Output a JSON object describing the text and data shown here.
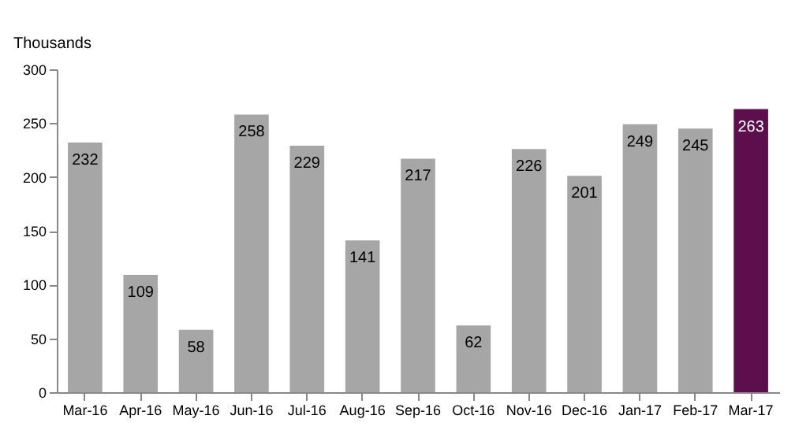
{
  "chart_data": {
    "type": "bar",
    "ylabel": "Thousands",
    "categories": [
      "Mar-16",
      "Apr-16",
      "May-16",
      "Jun-16",
      "Jul-16",
      "Aug-16",
      "Sep-16",
      "Oct-16",
      "Nov-16",
      "Dec-16",
      "Jan-17",
      "Feb-17",
      "Mar-17"
    ],
    "values": [
      232,
      109,
      58,
      258,
      229,
      141,
      217,
      62,
      226,
      201,
      249,
      245,
      263
    ],
    "colors": [
      "#a6a6a6",
      "#a6a6a6",
      "#a6a6a6",
      "#a6a6a6",
      "#a6a6a6",
      "#a6a6a6",
      "#a6a6a6",
      "#a6a6a6",
      "#a6a6a6",
      "#a6a6a6",
      "#a6a6a6",
      "#a6a6a6",
      "#5c0f4c"
    ],
    "ylim": [
      0,
      300
    ],
    "yticks": [
      0,
      50,
      100,
      150,
      200,
      250,
      300
    ],
    "grid": false,
    "data_labels": true
  }
}
